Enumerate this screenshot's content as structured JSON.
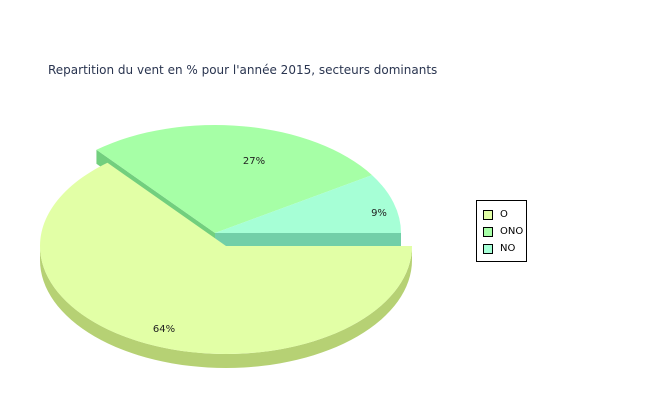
{
  "chart_data": {
    "type": "pie",
    "title": "Repartition du vent en % pour l'année 2015, secteurs dominants",
    "slices": [
      {
        "name": "O",
        "value": 64,
        "label": "64%",
        "color": "#e2ffa6",
        "side_color": "#b6d174",
        "exploded": false
      },
      {
        "name": "ONO",
        "value": 27,
        "label": "27%",
        "color": "#a6ffa6",
        "side_color": "#72cf7e",
        "exploded": true
      },
      {
        "name": "NO",
        "value": 9,
        "label": "9%",
        "color": "#a6ffd6",
        "side_color": "#72cfa8",
        "exploded": true
      }
    ],
    "legend": {
      "position": "right",
      "items": [
        "O",
        "ONO",
        "NO"
      ]
    }
  }
}
